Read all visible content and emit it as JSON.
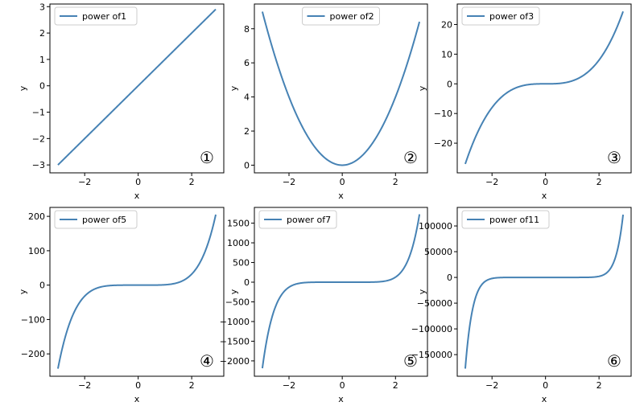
{
  "chart_data": [
    {
      "type": "line",
      "xlabel": "x",
      "ylabel": "y",
      "xlim": [
        -3.3,
        3.2
      ],
      "ylim": [
        -3.3,
        3.1
      ],
      "xticks": [
        -2,
        0,
        2
      ],
      "xtick_labels": [
        "−2",
        "0",
        "2"
      ],
      "yticks": [
        -3,
        -2,
        -1,
        0,
        1,
        2,
        3
      ],
      "ytick_labels": [
        "−3",
        "−2",
        "−1",
        "0",
        "1",
        "2",
        "3"
      ],
      "series": [
        {
          "name": "power of1",
          "exponent": 1,
          "x_range": [
            -3,
            2.9
          ],
          "color": "#4682b4"
        }
      ],
      "legend": "upper left",
      "annotation": "①"
    },
    {
      "type": "line",
      "xlabel": "x",
      "ylabel": "y",
      "xlim": [
        -3.3,
        3.2
      ],
      "ylim": [
        -0.45,
        9.45
      ],
      "xticks": [
        -2,
        0,
        2
      ],
      "xtick_labels": [
        "−2",
        "0",
        "2"
      ],
      "yticks": [
        0,
        2,
        4,
        6,
        8
      ],
      "ytick_labels": [
        "0",
        "2",
        "4",
        "6",
        "8"
      ],
      "series": [
        {
          "name": "power of2",
          "exponent": 2,
          "x_range": [
            -3,
            2.9
          ],
          "color": "#4682b4"
        }
      ],
      "legend": "upper center",
      "annotation": "②"
    },
    {
      "type": "line",
      "xlabel": "x",
      "ylabel": "y",
      "xlim": [
        -3.3,
        3.2
      ],
      "ylim": [
        -30,
        26.9
      ],
      "xticks": [
        -2,
        0,
        2
      ],
      "xtick_labels": [
        "−2",
        "0",
        "2"
      ],
      "yticks": [
        -20,
        -10,
        0,
        10,
        20
      ],
      "ytick_labels": [
        "−20",
        "−10",
        "0",
        "10",
        "20"
      ],
      "series": [
        {
          "name": "power of3",
          "exponent": 3,
          "x_range": [
            -3,
            2.9
          ],
          "color": "#4682b4"
        }
      ],
      "legend": "upper left",
      "annotation": "③"
    },
    {
      "type": "line",
      "xlabel": "x",
      "ylabel": "y",
      "xlim": [
        -3.3,
        3.2
      ],
      "ylim": [
        -265,
        226
      ],
      "xticks": [
        -2,
        0,
        2
      ],
      "xtick_labels": [
        "−2",
        "0",
        "2"
      ],
      "yticks": [
        -200,
        -100,
        0,
        100,
        200
      ],
      "ytick_labels": [
        "−200",
        "−100",
        "0",
        "100",
        "200"
      ],
      "series": [
        {
          "name": "power of5",
          "exponent": 5,
          "x_range": [
            -3,
            2.9
          ],
          "color": "#4682b4"
        }
      ],
      "legend": "upper left",
      "annotation": "④"
    },
    {
      "type": "line",
      "xlabel": "x",
      "ylabel": "y",
      "xlim": [
        -3.3,
        3.2
      ],
      "ylim": [
        -2390,
        1900
      ],
      "xticks": [
        -2,
        0,
        2
      ],
      "xtick_labels": [
        "−2",
        "0",
        "2"
      ],
      "yticks": [
        -2000,
        -1500,
        -1000,
        -500,
        0,
        500,
        1000,
        1500
      ],
      "ytick_labels": [
        "−2000",
        "−1500",
        "−1000",
        "−500",
        "0",
        "500",
        "1000",
        "1500"
      ],
      "series": [
        {
          "name": "power of7",
          "exponent": 7,
          "x_range": [
            -3,
            2.9
          ],
          "color": "#4682b4"
        }
      ],
      "legend": "upper left",
      "annotation": "⑤"
    },
    {
      "type": "line",
      "xlabel": "x",
      "ylabel": "y",
      "xlim": [
        -3.3,
        3.2
      ],
      "ylim": [
        -192000,
        136000
      ],
      "xticks": [
        -2,
        0,
        2
      ],
      "xtick_labels": [
        "−2",
        "0",
        "2"
      ],
      "yticks": [
        -150000,
        -100000,
        -50000,
        0,
        50000,
        100000
      ],
      "ytick_labels": [
        "−150000",
        "−100000",
        "−50000",
        "0",
        "50000",
        "100000"
      ],
      "series": [
        {
          "name": "power of11",
          "exponent": 11,
          "x_range": [
            -3,
            2.9
          ],
          "color": "#4682b4"
        }
      ],
      "legend": "upper left",
      "annotation": "⑥"
    }
  ]
}
